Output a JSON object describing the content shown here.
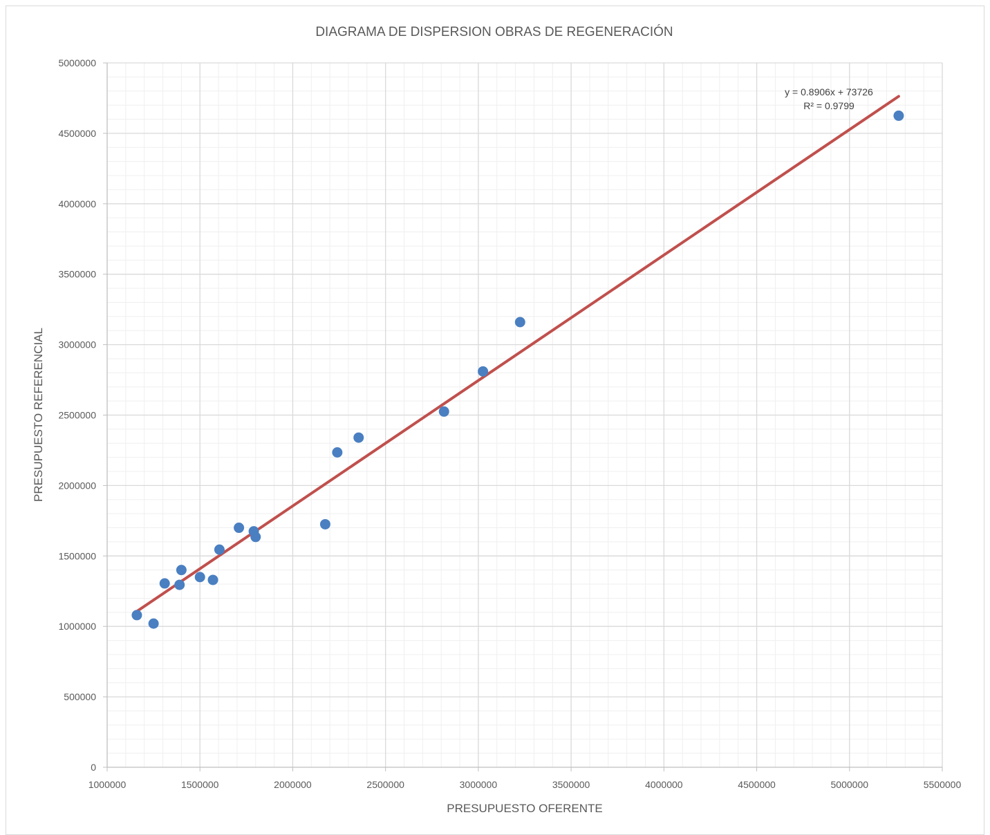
{
  "chart_data": {
    "type": "scatter",
    "title": "DIAGRAMA DE DISPERSION OBRAS DE REGENERACIÓN",
    "xlabel": "PRESUPUESTO OFERENTE",
    "ylabel": "PRESUPUESTO REFERENCIAL",
    "xlim": [
      1000000,
      5500000
    ],
    "ylim": [
      0,
      5000000
    ],
    "x_ticks": [
      "1000000",
      "1500000",
      "2000000",
      "2500000",
      "3000000",
      "3500000",
      "4000000",
      "4500000",
      "5000000",
      "5500000"
    ],
    "y_ticks": [
      "0",
      "500000",
      "1000000",
      "1500000",
      "2000000",
      "2500000",
      "3000000",
      "3500000",
      "4000000",
      "4500000",
      "5000000"
    ],
    "grid": true,
    "points": [
      {
        "x": 1160000,
        "y": 1080000
      },
      {
        "x": 1250000,
        "y": 1020000
      },
      {
        "x": 1310000,
        "y": 1305000
      },
      {
        "x": 1390000,
        "y": 1295000
      },
      {
        "x": 1400000,
        "y": 1400000
      },
      {
        "x": 1500000,
        "y": 1350000
      },
      {
        "x": 1570000,
        "y": 1330000
      },
      {
        "x": 1605000,
        "y": 1545000
      },
      {
        "x": 1710000,
        "y": 1700000
      },
      {
        "x": 1790000,
        "y": 1675000
      },
      {
        "x": 1800000,
        "y": 1635000
      },
      {
        "x": 2175000,
        "y": 1725000
      },
      {
        "x": 2240000,
        "y": 2235000
      },
      {
        "x": 2355000,
        "y": 2340000
      },
      {
        "x": 2815000,
        "y": 2525000
      },
      {
        "x": 3025000,
        "y": 2810000
      },
      {
        "x": 3225000,
        "y": 3160000
      },
      {
        "x": 5265000,
        "y": 4625000
      }
    ],
    "trendline": {
      "slope": 0.8906,
      "intercept": 73726,
      "x_range": [
        1160000,
        5265000
      ],
      "equation_text": "y = 0.8906x + 73726",
      "r2_text": "R² = 0.9799"
    },
    "colors": {
      "points": "#4a7fc1",
      "trendline": "#c0504d",
      "major_grid": "#d9d9d9",
      "minor_grid": "#efefef"
    }
  }
}
